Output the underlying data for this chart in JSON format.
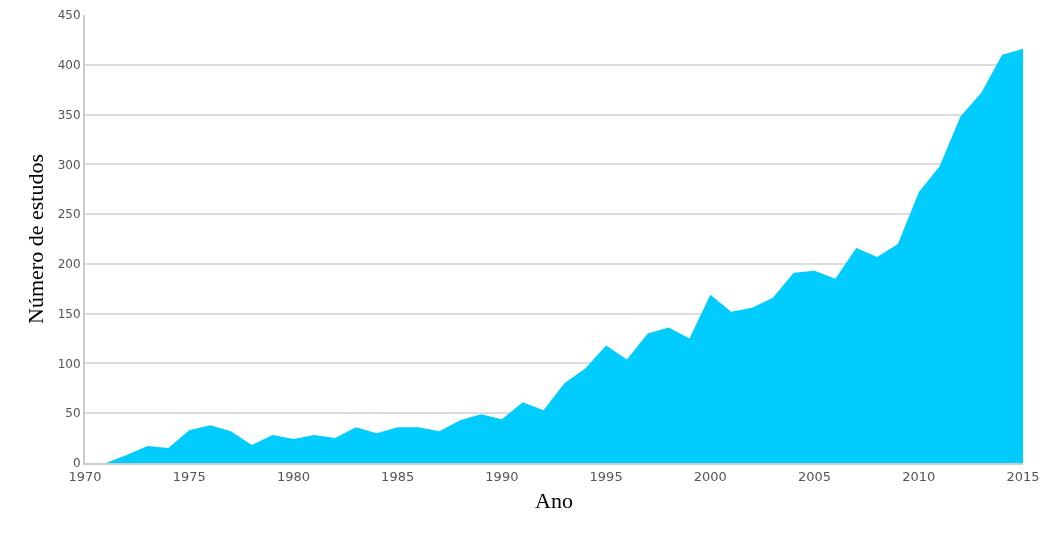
{
  "chart_data": {
    "type": "area",
    "xlabel": "Ano",
    "ylabel": "Número de estudos",
    "x": [
      1970,
      1971,
      1972,
      1973,
      1974,
      1975,
      1976,
      1977,
      1978,
      1979,
      1980,
      1981,
      1982,
      1983,
      1984,
      1985,
      1986,
      1987,
      1988,
      1989,
      1990,
      1991,
      1992,
      1993,
      1994,
      1995,
      1996,
      1997,
      1998,
      1999,
      2000,
      2001,
      2002,
      2003,
      2004,
      2005,
      2006,
      2007,
      2008,
      2009,
      2010,
      2011,
      2012,
      2013,
      2014,
      2015
    ],
    "series": [
      {
        "color": "#00ccff",
        "values": [
          0,
          0,
          8,
          17,
          15,
          33,
          38,
          32,
          18,
          28,
          24,
          28,
          25,
          36,
          30,
          36,
          36,
          32,
          43,
          49,
          44,
          61,
          53,
          80,
          95,
          118,
          104,
          130,
          136,
          125,
          169,
          152,
          156,
          166,
          191,
          193,
          185,
          216,
          207,
          220,
          272,
          298,
          348,
          372,
          410,
          416
        ]
      }
    ],
    "xlim": [
      1970,
      2015
    ],
    "xticks": [
      1970,
      1975,
      1980,
      1985,
      1990,
      1995,
      2000,
      2005,
      2010,
      2015
    ],
    "ylim": [
      0,
      450
    ],
    "yticks": [
      0,
      50,
      100,
      150,
      200,
      250,
      300,
      350,
      400,
      450
    ],
    "grid": "y"
  }
}
